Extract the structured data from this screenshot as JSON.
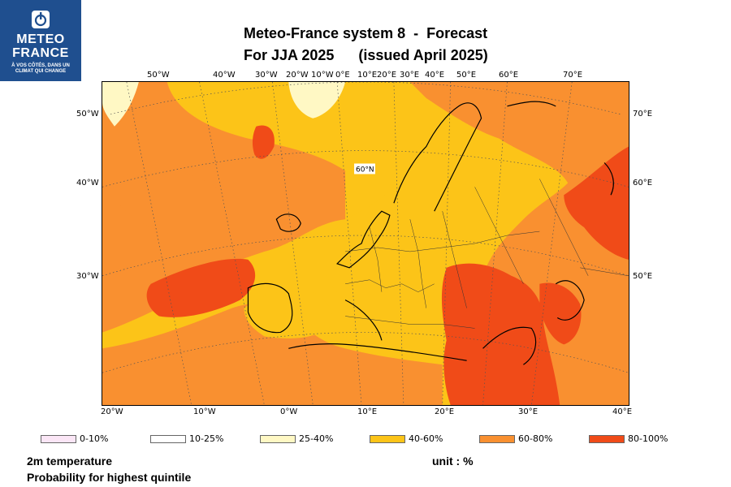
{
  "logo": {
    "line1": "METEO",
    "line2": "FRANCE",
    "tagline": "À VOS CÔTÉS, DANS UN CLIMAT QUI CHANGE"
  },
  "title": {
    "line1": "Meteo-France system 8  -  Forecast",
    "line2": "For JJA 2025      (issued April 2025)"
  },
  "map_labels": {
    "top": [
      "50°W",
      "40°W",
      "30°W",
      "20°W",
      "10°W",
      "0°E",
      "10°E",
      "20°E",
      "30°E",
      "40°E",
      "50°E",
      "60°E",
      "70°E"
    ],
    "bottom": [
      "20°W",
      "10°W",
      "0°W",
      "10°E",
      "20°E",
      "30°E",
      "40°E"
    ],
    "left": [
      "50°W",
      "40°W",
      "30°W"
    ],
    "right": [
      "70°E",
      "60°E",
      "50°E"
    ],
    "inner_lat": "60°N"
  },
  "legend": [
    {
      "label": "0-10%",
      "color": "#fbe6f6"
    },
    {
      "label": "10-25%",
      "color": "#ffffff"
    },
    {
      "label": "25-40%",
      "color": "#fff8c4"
    },
    {
      "label": "40-60%",
      "color": "#fcc418"
    },
    {
      "label": "60-80%",
      "color": "#f99030"
    },
    {
      "label": "80-100%",
      "color": "#f04b18"
    }
  ],
  "footer": {
    "variable": "2m temperature",
    "product": "Probability for highest quintile",
    "unit": "unit : %"
  }
}
